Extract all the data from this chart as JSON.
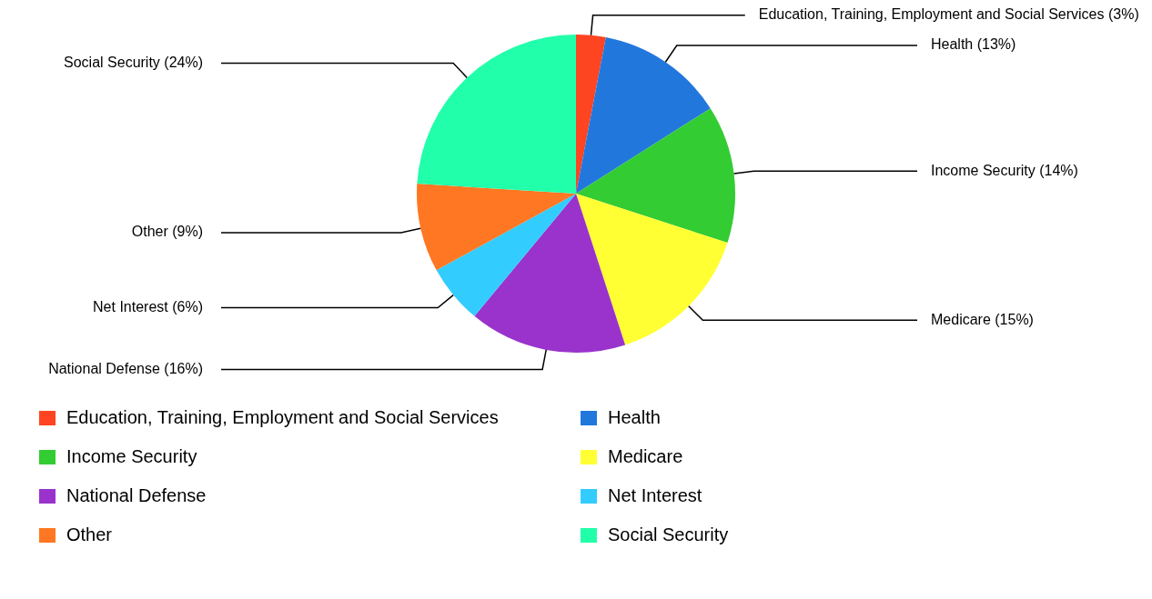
{
  "chart_data": {
    "type": "pie",
    "categories": [
      "Education, Training, Employment and Social Services",
      "Health",
      "Income Security",
      "Medicare",
      "National Defense",
      "Net Interest",
      "Other",
      "Social Security"
    ],
    "values": [
      3,
      13,
      14,
      15,
      16,
      6,
      9,
      24
    ],
    "value_labels": [
      "(3%)",
      "(13%)",
      "(14%)",
      "(15%)",
      "(16%)",
      "(6%)",
      "(9%)",
      "(24%)"
    ],
    "colors": [
      "#ff4422",
      "#2277dd",
      "#33cc33",
      "#ffff33",
      "#9933cc",
      "#33ccff",
      "#ff7722",
      "#22ffaa"
    ],
    "legend": "bottom"
  }
}
